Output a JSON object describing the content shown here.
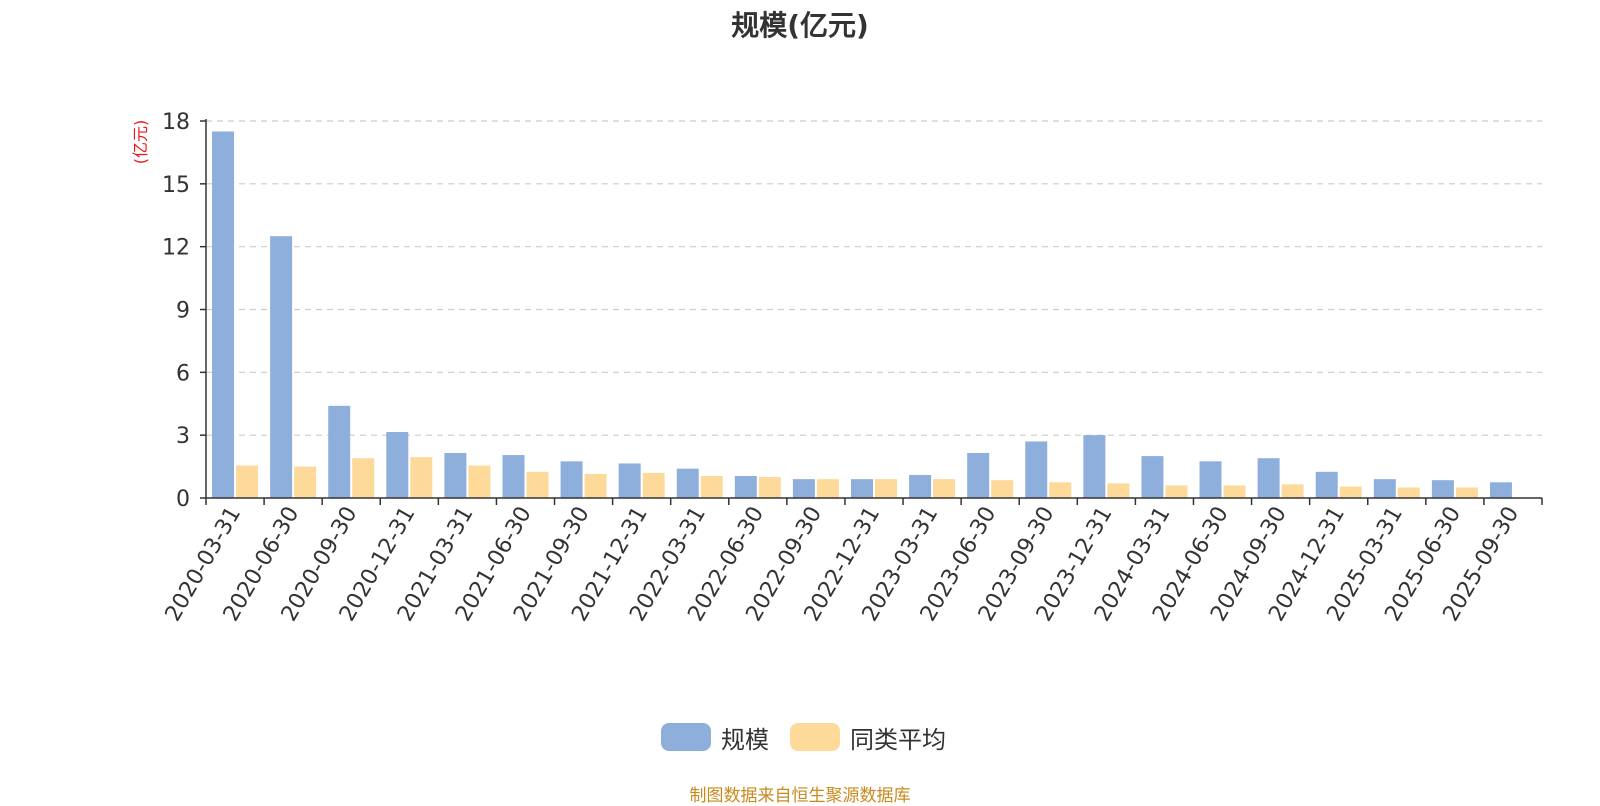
{
  "chart_data": {
    "type": "bar",
    "title": "规模(亿元)",
    "ylabel": "(亿元)",
    "ylim": [
      0,
      18
    ],
    "yticks": [
      0,
      3,
      6,
      9,
      12,
      15,
      18
    ],
    "grid": true,
    "legend_position": "bottom-center",
    "categories": [
      "2020-03-31",
      "2020-06-30",
      "2020-09-30",
      "2020-12-31",
      "2021-03-31",
      "2021-06-30",
      "2021-09-30",
      "2021-12-31",
      "2022-03-31",
      "2022-06-30",
      "2022-09-30",
      "2022-12-31",
      "2023-03-31",
      "2023-06-30",
      "2023-09-30",
      "2023-12-31",
      "2024-03-31",
      "2024-06-30",
      "2024-09-30",
      "2024-12-31",
      "2025-03-31",
      "2025-06-30",
      "2025-09-30"
    ],
    "series": [
      {
        "name": "规模",
        "color": "#8eaedc",
        "values": [
          17.5,
          12.5,
          4.4,
          3.15,
          2.15,
          2.05,
          1.75,
          1.65,
          1.4,
          1.05,
          0.9,
          0.9,
          1.1,
          2.15,
          2.7,
          3.0,
          2.0,
          1.75,
          1.9,
          1.25,
          0.9,
          0.85,
          0.75
        ]
      },
      {
        "name": "同类平均",
        "color": "#fdd99a",
        "values": [
          1.55,
          1.5,
          1.9,
          1.95,
          1.55,
          1.25,
          1.15,
          1.2,
          1.05,
          1.0,
          0.9,
          0.9,
          0.9,
          0.85,
          0.75,
          0.7,
          0.6,
          0.6,
          0.65,
          0.55,
          0.5,
          0.5,
          null
        ]
      }
    ]
  },
  "source_note": "制图数据来自恒生聚源数据库"
}
